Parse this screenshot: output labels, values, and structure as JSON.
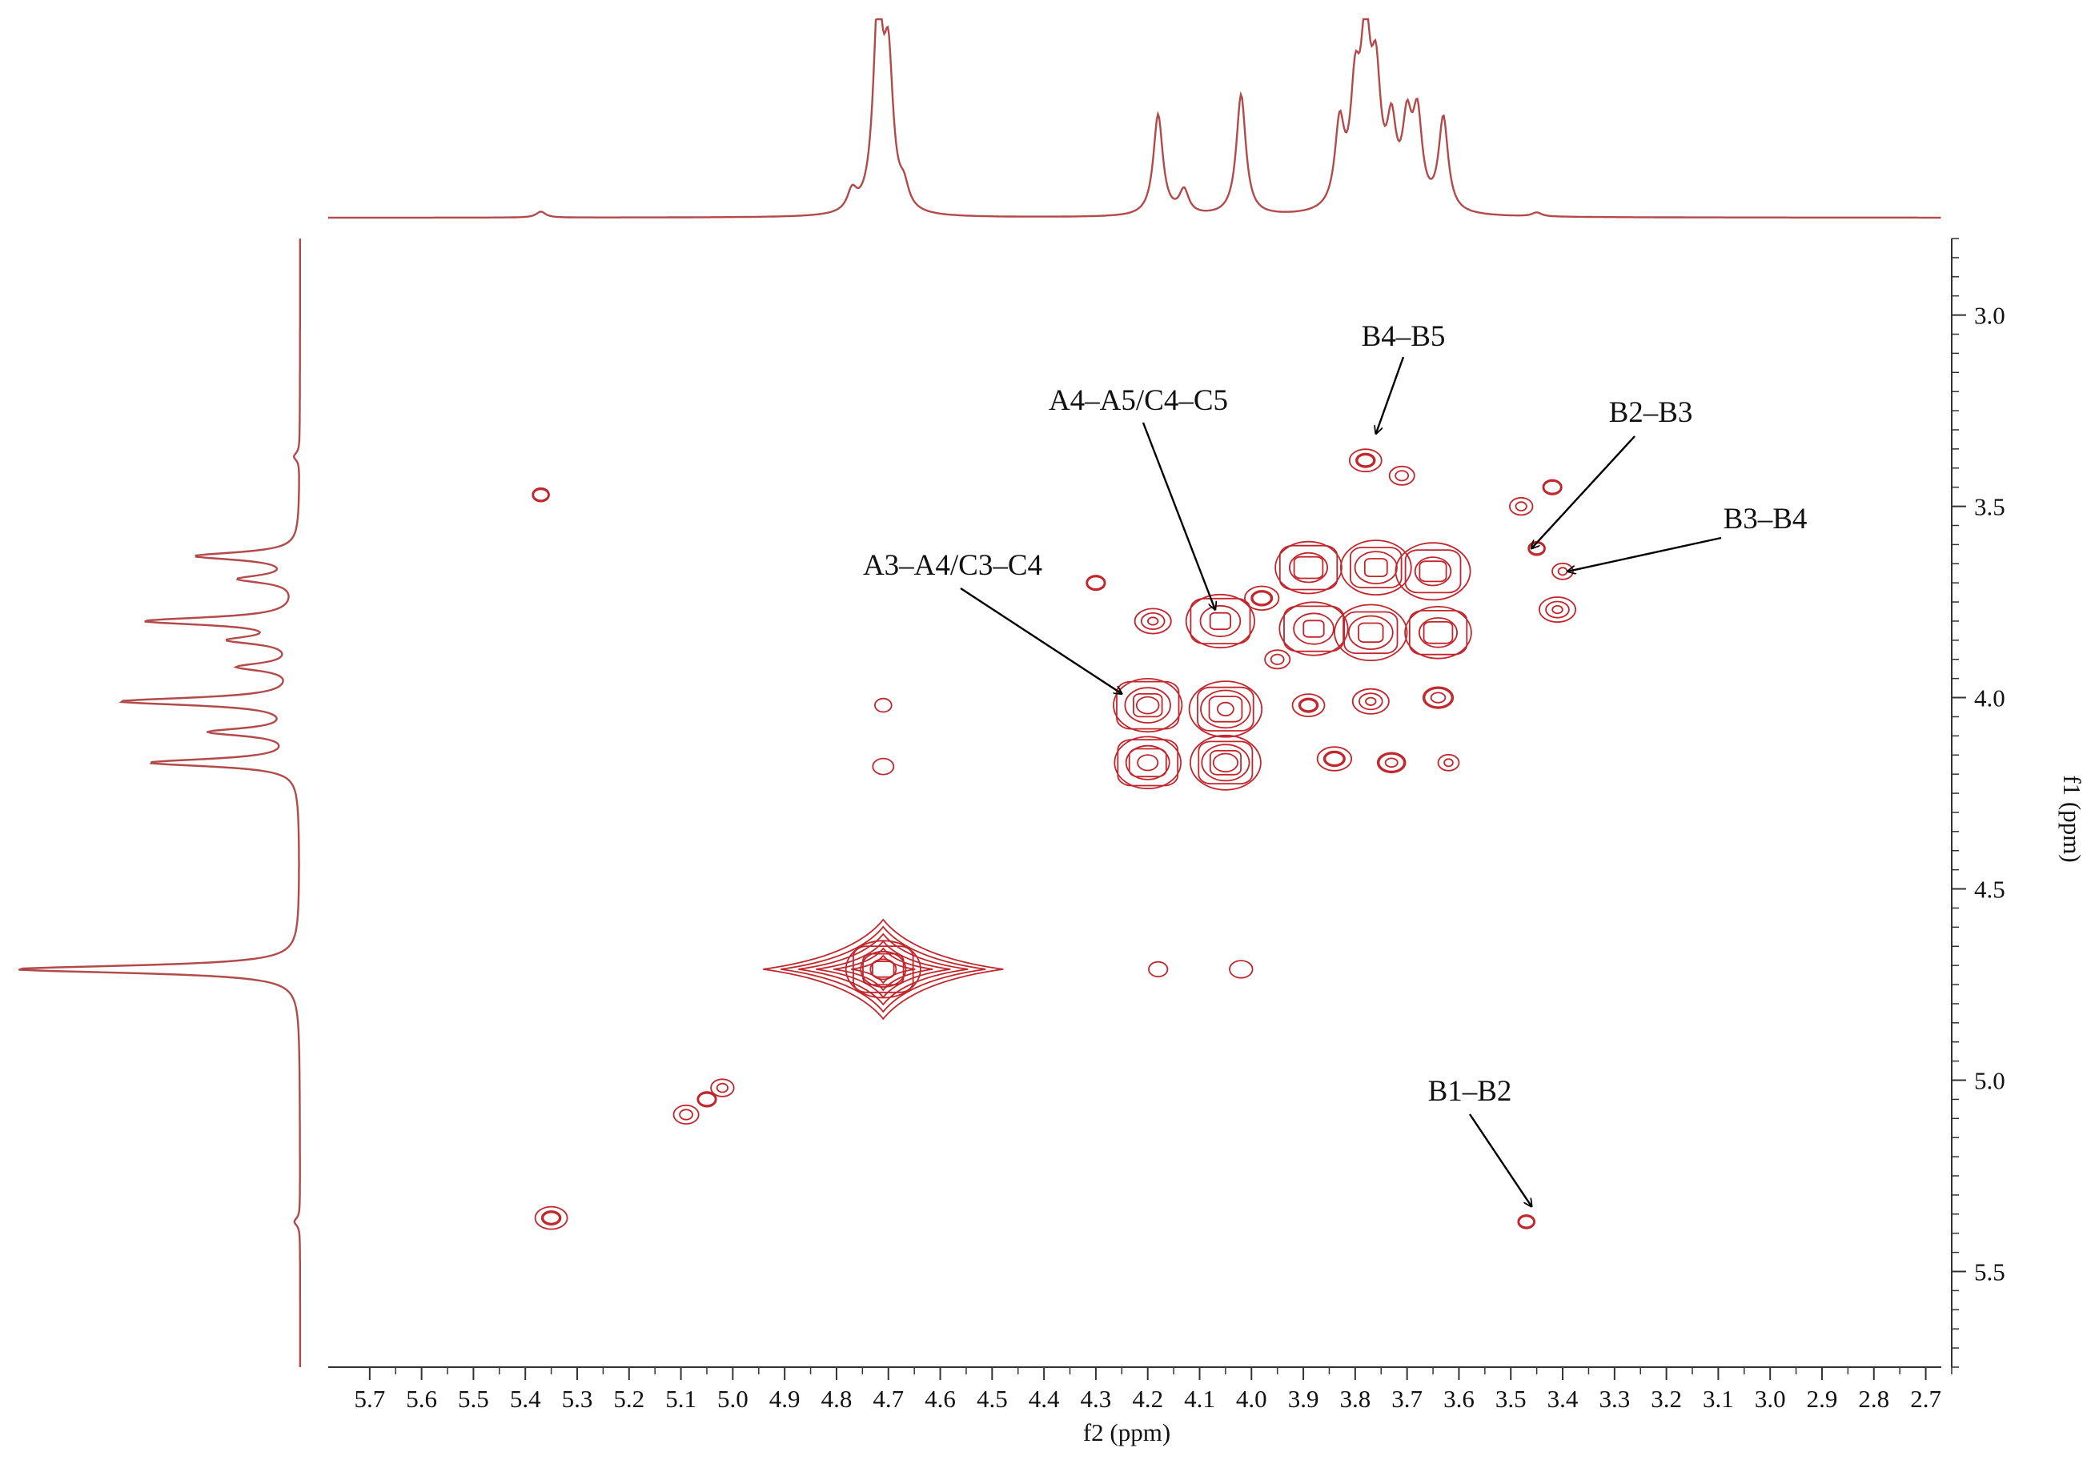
{
  "chart_data": {
    "type": "contour",
    "title": "",
    "xlabel": "f2 (ppm)",
    "ylabel": "f1 (ppm)",
    "xlim": [
      5.78,
      2.67
    ],
    "ylim": [
      2.8,
      5.75
    ],
    "x_reversed": true,
    "y_reversed": true,
    "grid": false,
    "legend": "none",
    "x_ticks": [
      "5.7",
      "5.6",
      "5.5",
      "5.4",
      "5.3",
      "5.2",
      "5.1",
      "5.0",
      "4.9",
      "4.8",
      "4.7",
      "4.6",
      "4.5",
      "4.4",
      "4.3",
      "4.2",
      "4.1",
      "4.0",
      "3.9",
      "3.8",
      "3.7",
      "3.6",
      "3.5",
      "3.4",
      "3.3",
      "3.2",
      "3.1",
      "3.0",
      "2.9",
      "2.8",
      "2.7"
    ],
    "y_ticks": [
      "3.0",
      "3.5",
      "4.0",
      "4.5",
      "5.0",
      "5.5"
    ],
    "series": [
      {
        "type": "1d-projection",
        "axis": "f2",
        "peaks": [
          {
            "ppm": 5.37,
            "intensity": 0.03
          },
          {
            "ppm": 4.77,
            "intensity": 0.1
          },
          {
            "ppm": 4.72,
            "intensity": 1.0
          },
          {
            "ppm": 4.7,
            "intensity": 0.7
          },
          {
            "ppm": 4.67,
            "intensity": 0.1
          },
          {
            "ppm": 4.18,
            "intensity": 0.51
          },
          {
            "ppm": 4.13,
            "intensity": 0.12
          },
          {
            "ppm": 4.02,
            "intensity": 0.61
          },
          {
            "ppm": 3.83,
            "intensity": 0.41
          },
          {
            "ppm": 3.8,
            "intensity": 0.53
          },
          {
            "ppm": 3.78,
            "intensity": 0.8
          },
          {
            "ppm": 3.76,
            "intensity": 0.58
          },
          {
            "ppm": 3.73,
            "intensity": 0.38
          },
          {
            "ppm": 3.7,
            "intensity": 0.39
          },
          {
            "ppm": 3.68,
            "intensity": 0.44
          },
          {
            "ppm": 3.63,
            "intensity": 0.47
          },
          {
            "ppm": 3.45,
            "intensity": 0.02
          }
        ]
      },
      {
        "type": "1d-projection",
        "axis": "f1",
        "peaks": [
          {
            "ppm": 3.37,
            "intensity": 0.02
          },
          {
            "ppm": 3.63,
            "intensity": 0.36
          },
          {
            "ppm": 3.69,
            "intensity": 0.2
          },
          {
            "ppm": 3.8,
            "intensity": 0.53
          },
          {
            "ppm": 3.85,
            "intensity": 0.22
          },
          {
            "ppm": 3.92,
            "intensity": 0.2
          },
          {
            "ppm": 4.01,
            "intensity": 0.62
          },
          {
            "ppm": 4.09,
            "intensity": 0.3
          },
          {
            "ppm": 4.17,
            "intensity": 0.52
          },
          {
            "ppm": 4.71,
            "intensity": 1.0
          },
          {
            "ppm": 5.37,
            "intensity": 0.02
          }
        ]
      },
      {
        "type": "cross-peaks",
        "points": [
          {
            "f2": 5.37,
            "f1": 3.47,
            "levels": 2
          },
          {
            "f2": 5.35,
            "f1": 5.36,
            "levels": 3
          },
          {
            "f2": 5.09,
            "f1": 5.09,
            "levels": 2
          },
          {
            "f2": 5.05,
            "f1": 5.05,
            "levels": 2
          },
          {
            "f2": 5.02,
            "f1": 5.02,
            "levels": 2
          },
          {
            "f2": 4.71,
            "f1": 4.02,
            "levels": 1
          },
          {
            "f2": 4.71,
            "f1": 4.18,
            "levels": 1
          },
          {
            "f2": 4.71,
            "f1": 4.71,
            "levels": 6
          },
          {
            "f2": 4.18,
            "f1": 4.71,
            "levels": 1
          },
          {
            "f2": 4.02,
            "f1": 4.71,
            "levels": 1
          },
          {
            "f2": 3.47,
            "f1": 5.37,
            "levels": 2
          },
          {
            "f2": 3.78,
            "f1": 3.38,
            "levels": 3
          },
          {
            "f2": 3.71,
            "f1": 3.42,
            "levels": 2
          },
          {
            "f2": 3.42,
            "f1": 3.45,
            "levels": 2
          },
          {
            "f2": 3.48,
            "f1": 3.5,
            "levels": 2
          },
          {
            "f2": 3.45,
            "f1": 3.61,
            "levels": 2
          },
          {
            "f2": 3.4,
            "f1": 3.67,
            "levels": 2
          },
          {
            "f2": 3.41,
            "f1": 3.77,
            "levels": 3
          },
          {
            "f2": 4.2,
            "f1": 4.02,
            "levels": 5
          },
          {
            "f2": 4.05,
            "f1": 4.03,
            "levels": 5
          },
          {
            "f2": 4.2,
            "f1": 4.17,
            "levels": 5
          },
          {
            "f2": 4.05,
            "f1": 4.17,
            "levels": 5
          },
          {
            "f2": 4.19,
            "f1": 3.8,
            "levels": 3
          },
          {
            "f2": 4.06,
            "f1": 3.8,
            "levels": 4
          },
          {
            "f2": 3.98,
            "f1": 3.74,
            "levels": 3
          },
          {
            "f2": 3.89,
            "f1": 3.66,
            "levels": 4
          },
          {
            "f2": 3.76,
            "f1": 3.66,
            "levels": 4
          },
          {
            "f2": 3.65,
            "f1": 3.67,
            "levels": 4
          },
          {
            "f2": 3.88,
            "f1": 3.82,
            "levels": 4
          },
          {
            "f2": 3.77,
            "f1": 3.83,
            "levels": 4
          },
          {
            "f2": 3.64,
            "f1": 3.83,
            "levels": 4
          },
          {
            "f2": 3.89,
            "f1": 4.02,
            "levels": 3
          },
          {
            "f2": 3.77,
            "f1": 4.01,
            "levels": 3
          },
          {
            "f2": 3.64,
            "f1": 4.0,
            "levels": 3
          },
          {
            "f2": 3.84,
            "f1": 4.16,
            "levels": 3
          },
          {
            "f2": 3.73,
            "f1": 4.17,
            "levels": 3
          },
          {
            "f2": 3.62,
            "f1": 4.17,
            "levels": 2
          },
          {
            "f2": 3.95,
            "f1": 3.9,
            "levels": 2
          },
          {
            "f2": 4.3,
            "f1": 3.7,
            "levels": 2
          }
        ]
      }
    ],
    "annotations": [
      {
        "text": "A3–A4/C3–C4",
        "arrow_to": {
          "f2": 4.25,
          "f1": 3.99
        }
      },
      {
        "text": "A4–A5/C4–C5",
        "arrow_to": {
          "f2": 4.07,
          "f1": 3.77
        }
      },
      {
        "text": "B4–B5",
        "arrow_to": {
          "f2": 3.76,
          "f1": 3.31
        }
      },
      {
        "text": "B2–B3",
        "arrow_to": {
          "f2": 3.46,
          "f1": 3.61
        }
      },
      {
        "text": "B3–B4",
        "arrow_to": {
          "f2": 3.39,
          "f1": 3.67
        }
      },
      {
        "text": "B1–B2",
        "arrow_to": {
          "f2": 3.46,
          "f1": 5.33
        }
      }
    ],
    "colors": {
      "contour": "#c0272d",
      "projection": "#b24a4a",
      "axis": "#333333",
      "arrow": "#000000"
    }
  }
}
